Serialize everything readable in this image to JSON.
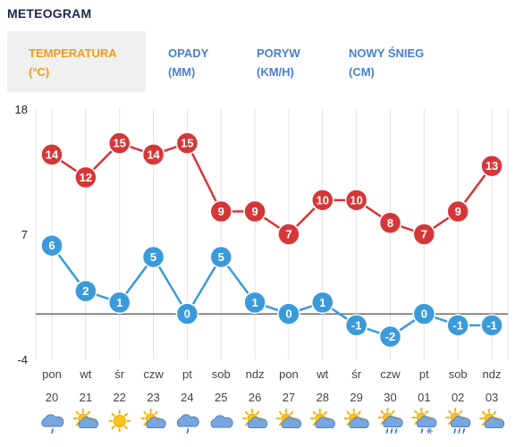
{
  "title": "METEOGRAM",
  "tabs": [
    {
      "line1": "TEMPERATURA",
      "line2": "(°C)",
      "active": true
    },
    {
      "line1": "OPADY",
      "line2": "(MM)",
      "active": false
    },
    {
      "line1": "PORYW",
      "line2": "(KM/H)",
      "active": false
    },
    {
      "line1": "NOWY ŚNIEG",
      "line2": "(CM)",
      "active": false
    }
  ],
  "colors": {
    "max": "#d63638",
    "min": "#3b9ad9",
    "active_tab": "#f39c12",
    "tab": "#4a7fd4"
  },
  "chart_data": {
    "type": "line",
    "ylim": [
      -4,
      18
    ],
    "yticks": [
      18,
      7,
      -4
    ],
    "days": [
      "pon",
      "wt",
      "śr",
      "czw",
      "pt",
      "sob",
      "ndz",
      "pon",
      "wt",
      "śr",
      "czw",
      "pt",
      "sob",
      "ndz"
    ],
    "dates": [
      "20",
      "21",
      "22",
      "23",
      "24",
      "25",
      "26",
      "27",
      "28",
      "29",
      "30",
      "01",
      "02",
      "03"
    ],
    "series": [
      {
        "key": "max",
        "values": [
          14,
          12,
          15,
          14,
          15,
          9,
          9,
          7,
          10,
          10,
          8,
          7,
          9,
          13
        ]
      },
      {
        "key": "min",
        "values": [
          6,
          2,
          1,
          5,
          0,
          5,
          1,
          0,
          1,
          -1,
          -2,
          0,
          -1,
          -1
        ]
      }
    ]
  },
  "icons": [
    "cloud-rain-icon",
    "partly-cloudy-icon",
    "sun-icon",
    "partly-cloudy-icon",
    "cloud-rain-icon",
    "cloud-icon",
    "partly-cloudy-icon",
    "partly-cloudy-icon",
    "partly-cloudy-icon",
    "partly-cloudy-icon",
    "partly-cloudy-rain-icon",
    "partly-cloudy-snow-icon",
    "partly-cloudy-rain-icon",
    "partly-cloudy-icon"
  ]
}
